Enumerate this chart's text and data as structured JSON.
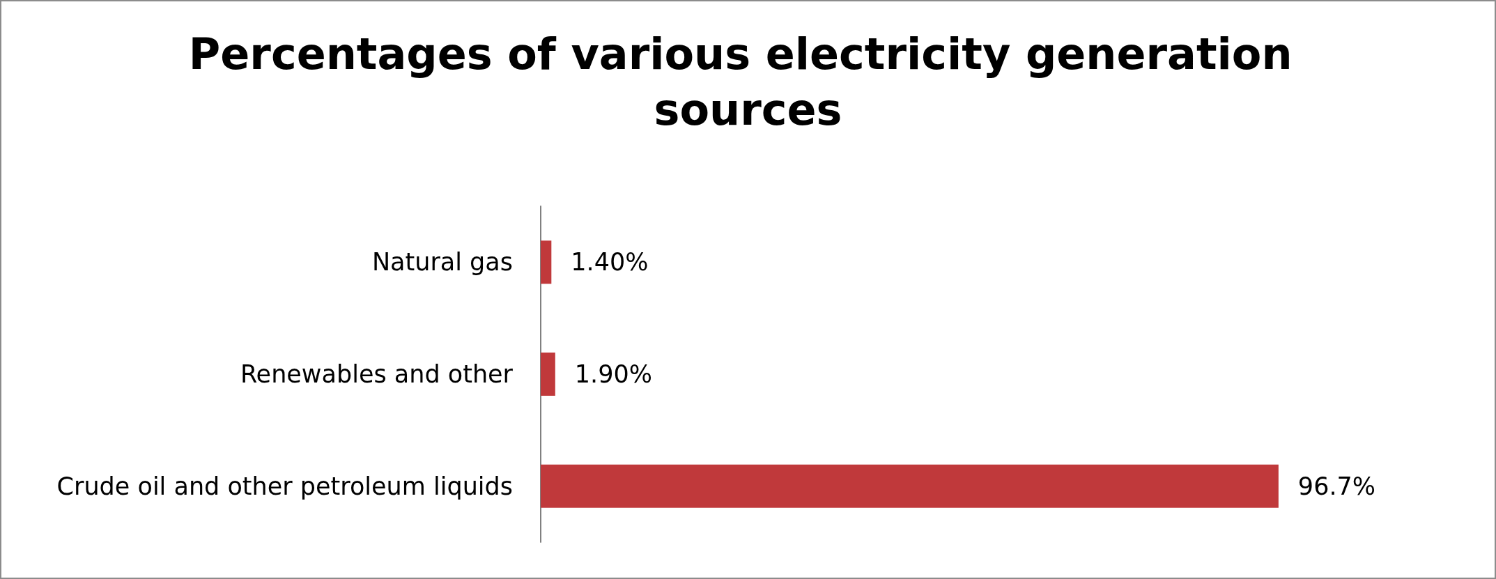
{
  "chart_data": {
    "type": "bar",
    "orientation": "horizontal",
    "title": "Percentages of various electricity generation sources",
    "categories": [
      "Natural gas",
      "Renewables and other",
      "Crude oil and other petroleum liquids"
    ],
    "values": [
      1.4,
      1.9,
      96.7
    ],
    "value_labels": [
      "1.40%",
      "1.90%",
      "96.7%"
    ],
    "color": "#c0393b"
  }
}
